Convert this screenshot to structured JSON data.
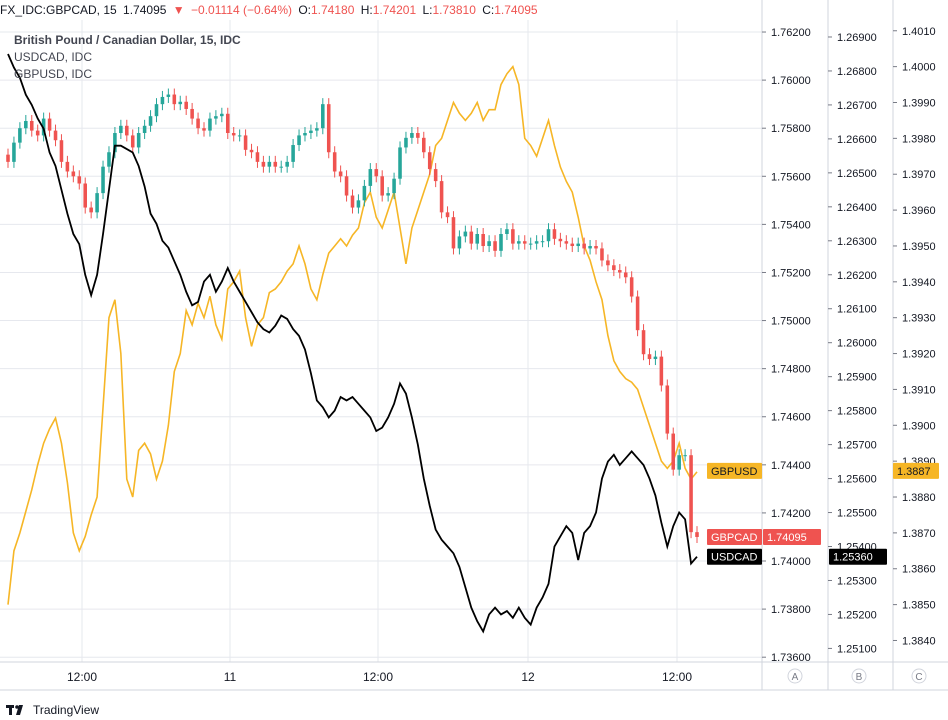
{
  "header": {
    "symbol": "FX_IDC:GBPCAD, 15",
    "last": "1.74095",
    "change": "−0.01114 (−0.64%)",
    "open_label": "O:",
    "open": "1.74180",
    "high_label": "H:",
    "high": "1.74201",
    "low_label": "L:",
    "low": "1.73810",
    "close_label": "C:",
    "close": "1.74095"
  },
  "footer": {
    "brand": "TradingView"
  },
  "colors": {
    "up": "#26a69a",
    "down": "#ef5350",
    "usdcad": "#000000",
    "gbpusd": "#f6b626",
    "grid": "#e6e8ee"
  },
  "chart_data": {
    "type": "line",
    "legend": [
      "British Pound / Canadian Dollar, 15, IDC",
      "USDCAD, IDC",
      "GBPUSD, IDC"
    ],
    "x_ticks": [
      "12:00",
      "11",
      "12:00",
      "12",
      "12:00"
    ],
    "scales": {
      "A": {
        "ticks": [
          "1.76200",
          "1.76000",
          "1.75800",
          "1.75600",
          "1.75400",
          "1.75200",
          "1.75000",
          "1.74800",
          "1.74600",
          "1.74400",
          "1.74200",
          "1.74000",
          "1.73800",
          "1.73600"
        ],
        "range": [
          1.7358,
          1.7625
        ]
      },
      "B": {
        "ticks": [
          "1.26900",
          "1.26800",
          "1.26700",
          "1.26600",
          "1.26500",
          "1.26400",
          "1.26300",
          "1.26200",
          "1.26100",
          "1.26000",
          "1.25900",
          "1.25800",
          "1.25700",
          "1.25600",
          "1.25500",
          "1.25400",
          "1.25300",
          "1.25200",
          "1.25100"
        ],
        "range": [
          1.2506,
          1.2695
        ]
      },
      "C": {
        "ticks": [
          "1.4010",
          "1.4000",
          "1.3990",
          "1.3980",
          "1.3970",
          "1.3960",
          "1.3950",
          "1.3940",
          "1.3930",
          "1.3920",
          "1.3910",
          "1.3900",
          "1.3890",
          "1.3880",
          "1.3870",
          "1.3860",
          "1.3850",
          "1.3840"
        ],
        "range": [
          1.3834,
          1.4013
        ]
      },
      "labels": [
        "A",
        "B",
        "C"
      ]
    },
    "series": [
      {
        "name": "GBPCAD",
        "scale": "A",
        "kind": "candles",
        "last_label": "1.74095",
        "x": [
          0,
          6,
          12,
          18,
          24,
          30,
          36,
          42,
          48,
          54,
          60,
          66,
          72,
          78,
          84,
          90,
          96,
          102,
          108,
          114,
          120,
          126,
          132,
          138,
          144,
          150,
          156,
          162,
          168,
          174,
          180,
          186,
          192,
          198,
          204,
          210,
          216,
          222,
          228,
          234,
          240,
          246,
          252,
          258,
          264,
          270,
          276,
          282,
          288,
          294,
          300,
          306,
          312,
          318,
          324,
          330,
          336,
          342,
          348,
          354,
          360,
          366,
          372,
          378,
          384,
          390,
          396,
          402,
          408,
          414,
          420,
          426,
          432,
          438,
          444,
          450,
          456,
          462,
          468,
          474,
          480,
          486,
          492,
          498,
          504,
          510,
          516,
          522,
          528,
          534,
          540,
          546,
          552,
          558,
          564,
          570,
          576,
          582,
          588,
          594,
          600,
          606,
          612,
          618,
          624,
          630,
          636,
          642,
          648,
          654,
          660,
          666,
          672,
          678,
          684,
          690,
          696
        ],
        "y": [
          1.7566,
          1.7574,
          1.758,
          1.7583,
          1.7579,
          1.7577,
          1.7584,
          1.7579,
          1.7575,
          1.7566,
          1.7562,
          1.756,
          1.7557,
          1.7547,
          1.7545,
          1.7553,
          1.7564,
          1.757,
          1.7578,
          1.7581,
          1.7577,
          1.7572,
          1.7578,
          1.7581,
          1.7585,
          1.759,
          1.7593,
          1.7594,
          1.759,
          1.7591,
          1.7588,
          1.7584,
          1.758,
          1.7579,
          1.7584,
          1.7585,
          1.7586,
          1.7578,
          1.7577,
          1.7577,
          1.7571,
          1.757,
          1.7566,
          1.7564,
          1.7566,
          1.7564,
          1.7564,
          1.7566,
          1.7573,
          1.7577,
          1.7578,
          1.7579,
          1.758,
          1.759,
          1.757,
          1.7562,
          1.756,
          1.7552,
          1.7547,
          1.755,
          1.7556,
          1.7563,
          1.756,
          1.7552,
          1.7553,
          1.7559,
          1.7572,
          1.7576,
          1.7578,
          1.7576,
          1.757,
          1.7563,
          1.7558,
          1.7545,
          1.7543,
          1.753,
          1.7535,
          1.7537,
          1.7532,
          1.7536,
          1.7531,
          1.7533,
          1.7529,
          1.7536,
          1.7538,
          1.7532,
          1.7533,
          1.7532,
          1.7532,
          1.7533,
          1.7533,
          1.7538,
          1.7534,
          1.7533,
          1.7532,
          1.7531,
          1.7532,
          1.753,
          1.7531,
          1.753,
          1.7525,
          1.7523,
          1.7521,
          1.752,
          1.7518,
          1.751,
          1.7496,
          1.7486,
          1.7484,
          1.7485,
          1.7473,
          1.7453,
          1.7438,
          1.7444,
          1.7444,
          1.7412,
          1.741
        ]
      },
      {
        "name": "USDCAD",
        "scale": "B",
        "kind": "line",
        "last_label": "1.25360",
        "x": [
          0,
          6,
          12,
          18,
          24,
          30,
          36,
          42,
          48,
          54,
          60,
          66,
          72,
          78,
          84,
          90,
          96,
          102,
          108,
          114,
          120,
          126,
          132,
          138,
          144,
          150,
          156,
          162,
          168,
          174,
          180,
          186,
          192,
          198,
          204,
          210,
          216,
          222,
          228,
          234,
          240,
          246,
          252,
          258,
          264,
          270,
          276,
          282,
          288,
          294,
          300,
          306,
          312,
          318,
          324,
          330,
          336,
          342,
          348,
          354,
          360,
          366,
          372,
          378,
          384,
          390,
          396,
          402,
          408,
          414,
          420,
          426,
          432,
          438,
          444,
          450,
          456,
          462,
          468,
          474,
          480,
          486,
          492,
          498,
          504,
          510,
          516,
          522,
          528,
          534,
          540,
          546,
          552,
          558,
          564,
          570,
          576,
          582,
          588,
          594,
          600,
          606,
          612,
          618,
          624,
          630,
          636,
          642,
          648,
          654,
          660,
          666,
          672,
          678,
          684,
          690,
          696
        ],
        "y": [
          1.2685,
          1.2681,
          1.2678,
          1.2673,
          1.267,
          1.2666,
          1.2663,
          1.2656,
          1.2652,
          1.2645,
          1.2638,
          1.2632,
          1.2629,
          1.262,
          1.2614,
          1.262,
          1.2632,
          1.2645,
          1.2658,
          1.2658,
          1.2657,
          1.2656,
          1.2652,
          1.2646,
          1.2638,
          1.2635,
          1.263,
          1.2628,
          1.2624,
          1.262,
          1.2615,
          1.2611,
          1.2612,
          1.2618,
          1.262,
          1.2615,
          1.2618,
          1.2622,
          1.2618,
          1.2615,
          1.2612,
          1.2609,
          1.2606,
          1.2604,
          1.2603,
          1.2605,
          1.2608,
          1.2607,
          1.2604,
          1.2602,
          1.2598,
          1.2591,
          1.2583,
          1.2581,
          1.2578,
          1.258,
          1.2584,
          1.2583,
          1.2584,
          1.2582,
          1.258,
          1.2578,
          1.2574,
          1.2575,
          1.2578,
          1.2582,
          1.2588,
          1.2585,
          1.2578,
          1.257,
          1.256,
          1.2552,
          1.2545,
          1.2542,
          1.254,
          1.2538,
          1.2534,
          1.2528,
          1.2522,
          1.2518,
          1.2515,
          1.252,
          1.2522,
          1.252,
          1.2521,
          1.2519,
          1.2522,
          1.2519,
          1.2517,
          1.2522,
          1.2525,
          1.2529,
          1.254,
          1.2543,
          1.2546,
          1.2544,
          1.2536,
          1.2544,
          1.2546,
          1.255,
          1.256,
          1.2565,
          1.2567,
          1.2564,
          1.2566,
          1.2568,
          1.2566,
          1.2564,
          1.256,
          1.2555,
          1.2547,
          1.254,
          1.2546,
          1.255,
          1.2548,
          1.2535,
          1.2537
        ]
      },
      {
        "name": "GBPUSD",
        "scale": "C",
        "kind": "line",
        "last_label": "1.3887",
        "x": [
          0,
          6,
          12,
          18,
          24,
          30,
          36,
          42,
          48,
          54,
          60,
          66,
          72,
          78,
          84,
          90,
          96,
          102,
          108,
          114,
          120,
          126,
          132,
          138,
          144,
          150,
          156,
          162,
          168,
          174,
          180,
          186,
          192,
          198,
          204,
          210,
          216,
          222,
          228,
          234,
          240,
          246,
          252,
          258,
          264,
          270,
          276,
          282,
          288,
          294,
          300,
          306,
          312,
          318,
          324,
          330,
          336,
          342,
          348,
          354,
          360,
          366,
          372,
          378,
          384,
          390,
          396,
          402,
          408,
          414,
          420,
          426,
          432,
          438,
          444,
          450,
          456,
          462,
          468,
          474,
          480,
          486,
          492,
          498,
          504,
          510,
          516,
          522,
          528,
          534,
          540,
          546,
          552,
          558,
          564,
          570,
          576,
          582,
          588,
          594,
          600,
          606,
          612,
          618,
          624,
          630,
          636,
          642,
          648,
          654,
          660,
          666,
          672,
          678,
          684,
          690,
          696
        ],
        "y": [
          1.385,
          1.3865,
          1.387,
          1.3876,
          1.3882,
          1.3889,
          1.3895,
          1.3899,
          1.3902,
          1.3895,
          1.3884,
          1.387,
          1.3865,
          1.3869,
          1.3875,
          1.388,
          1.3905,
          1.393,
          1.3935,
          1.392,
          1.3885,
          1.388,
          1.3893,
          1.3895,
          1.3892,
          1.3885,
          1.389,
          1.39,
          1.3915,
          1.392,
          1.3932,
          1.3928,
          1.3934,
          1.393,
          1.3936,
          1.3928,
          1.3924,
          1.3938,
          1.394,
          1.3943,
          1.393,
          1.3922,
          1.3928,
          1.393,
          1.3937,
          1.3938,
          1.394,
          1.3943,
          1.3945,
          1.395,
          1.3945,
          1.3938,
          1.3935,
          1.3942,
          1.3948,
          1.395,
          1.3952,
          1.395,
          1.3953,
          1.3955,
          1.3962,
          1.3965,
          1.3958,
          1.3955,
          1.396,
          1.3965,
          1.3955,
          1.3945,
          1.3955,
          1.396,
          1.3965,
          1.397,
          1.3978,
          1.398,
          1.3985,
          1.399,
          1.3987,
          1.3985,
          1.3987,
          1.399,
          1.3985,
          1.3988,
          1.3988,
          1.3995,
          1.3998,
          1.4,
          1.3995,
          1.398,
          1.3978,
          1.3975,
          1.398,
          1.3985,
          1.3978,
          1.3972,
          1.3968,
          1.3965,
          1.3958,
          1.395,
          1.3946,
          1.394,
          1.3935,
          1.3925,
          1.3918,
          1.3915,
          1.3913,
          1.3912,
          1.391,
          1.3905,
          1.39,
          1.3895,
          1.389,
          1.3888,
          1.389,
          1.3895,
          1.3888,
          1.3885,
          1.3887
        ]
      }
    ]
  }
}
